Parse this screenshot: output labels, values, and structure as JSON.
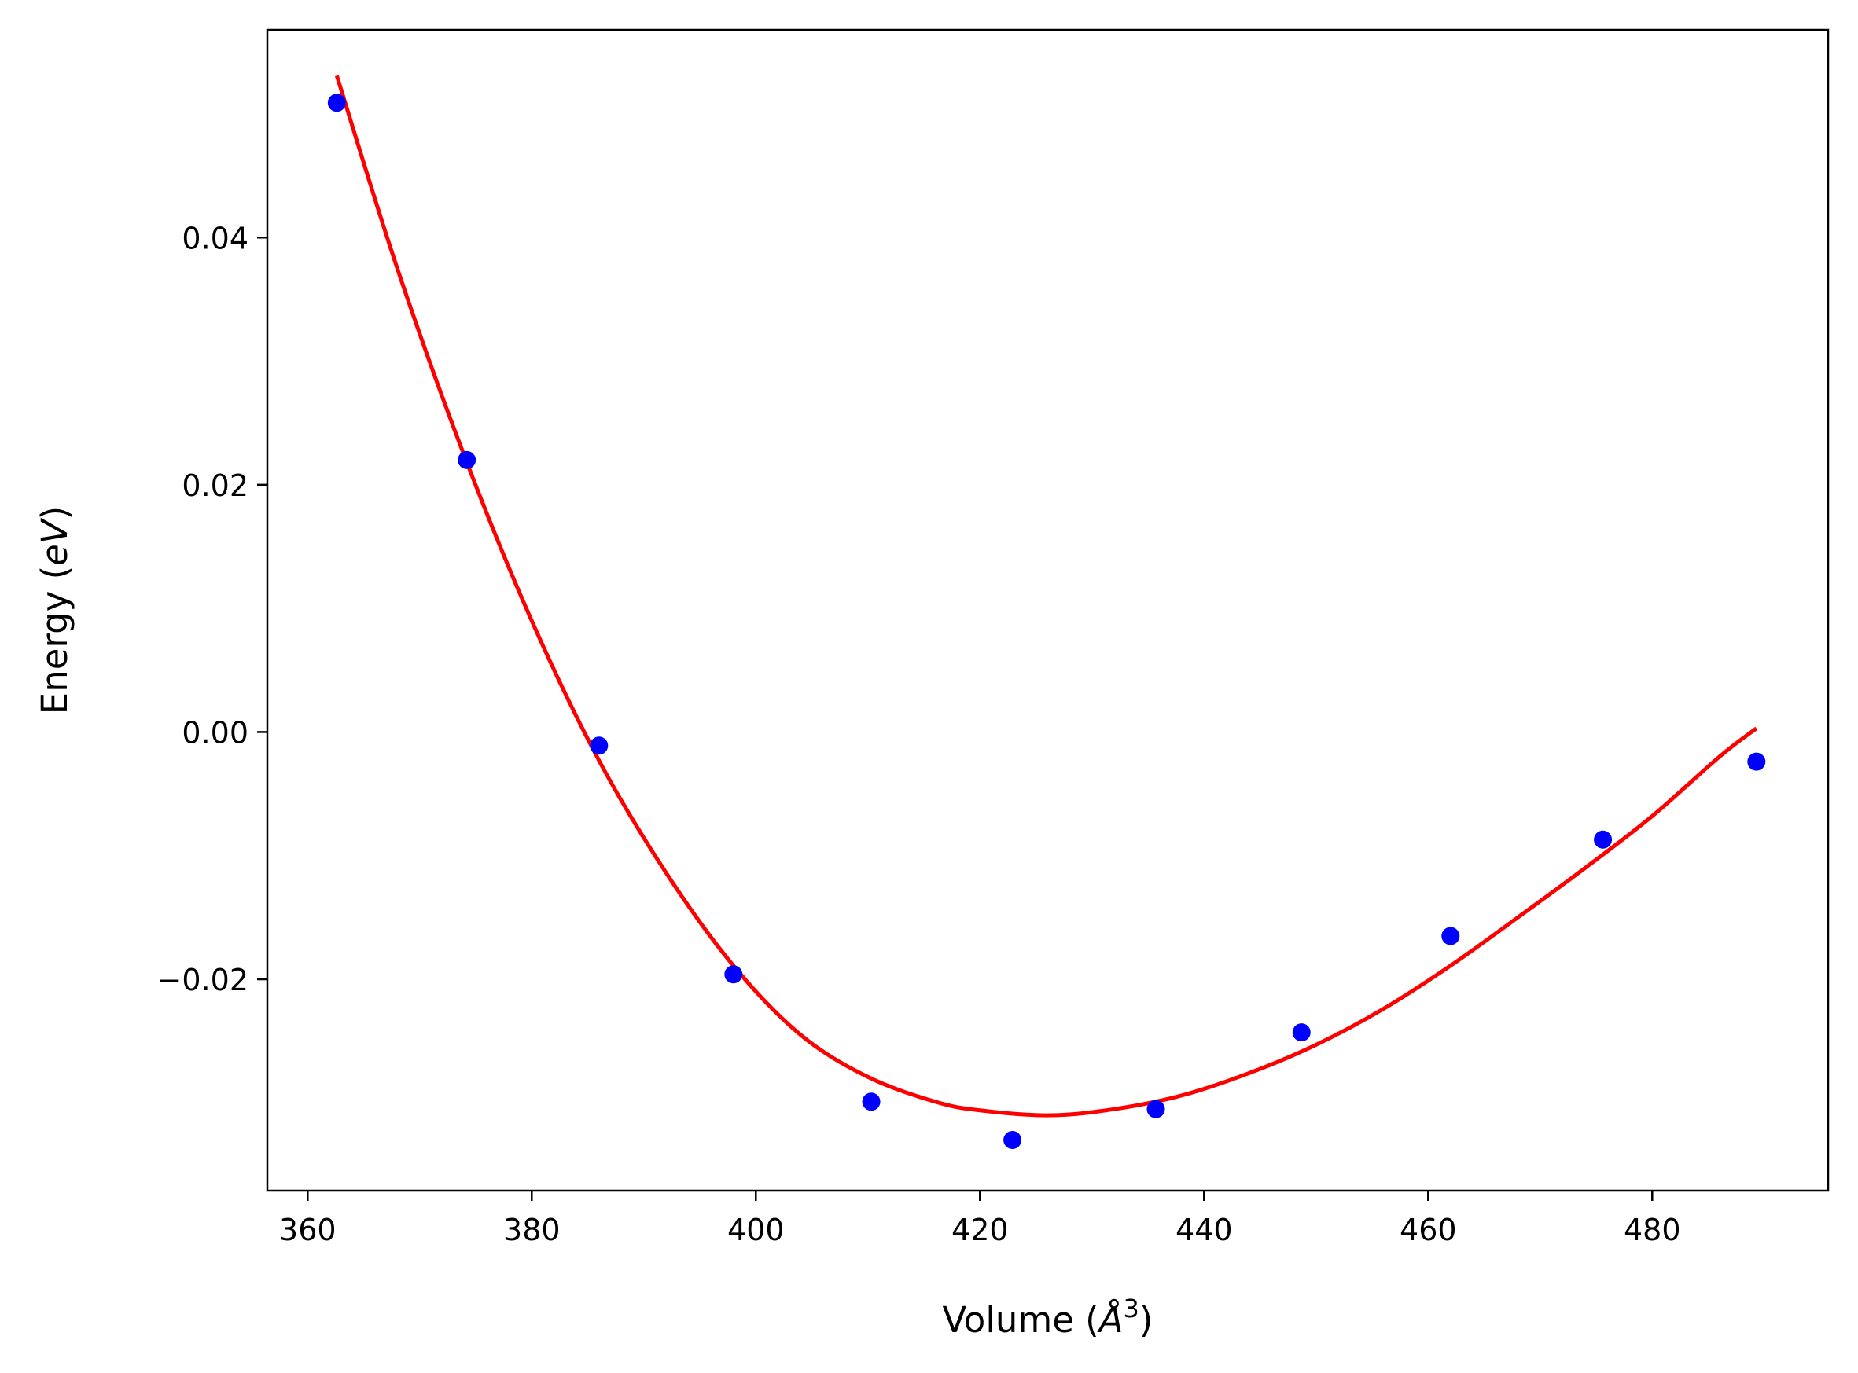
{
  "chart_data": {
    "type": "scatter",
    "title": "",
    "xlabel": {
      "prefix": "Volume (",
      "symbol": "Å",
      "superscript": "3",
      "suffix": ")"
    },
    "ylabel": {
      "prefix": "Energy (",
      "unit": "eV",
      "suffix": ")"
    },
    "xlim": [
      356.4,
      495.7
    ],
    "ylim": [
      -0.0371,
      0.0568
    ],
    "x_ticks": [
      360,
      380,
      400,
      420,
      440,
      460,
      480
    ],
    "x_tick_labels": [
      "360",
      "380",
      "400",
      "420",
      "440",
      "460",
      "480"
    ],
    "y_ticks": [
      -0.02,
      0.0,
      0.02,
      0.04
    ],
    "y_tick_labels": [
      "−0.02",
      "0.00",
      "0.02",
      "0.04"
    ],
    "grid": false,
    "legend": "none",
    "series": [
      {
        "kind": "points",
        "color": "#0000ff",
        "x": [
          362.6,
          374.2,
          386.0,
          398.0,
          410.3,
          422.9,
          435.7,
          448.7,
          462.0,
          475.6,
          489.3
        ],
        "y": [
          0.0509,
          0.022,
          -0.0011,
          -0.0196,
          -0.0299,
          -0.033,
          -0.0305,
          -0.0243,
          -0.0165,
          -0.0087,
          -0.0024
        ]
      },
      {
        "kind": "fit-curve",
        "color": "#ff0000",
        "x": [
          362.6,
          368.0,
          374.0,
          380.0,
          386.0,
          392.0,
          398.0,
          404.0,
          410.0,
          416.0,
          420.0,
          426.2,
          432.0,
          438.0,
          444.0,
          450.0,
          456.0,
          462.0,
          468.0,
          474.0,
          480.0,
          486.0,
          489.3
        ],
        "y": [
          0.0531,
          0.0375,
          0.0223,
          0.009,
          -0.0023,
          -0.0114,
          -0.0189,
          -0.0245,
          -0.0279,
          -0.0299,
          -0.0306,
          -0.031,
          -0.0305,
          -0.0294,
          -0.0276,
          -0.0253,
          -0.0224,
          -0.0189,
          -0.015,
          -0.011,
          -0.0068,
          -0.002,
          0.0003
        ]
      }
    ]
  }
}
